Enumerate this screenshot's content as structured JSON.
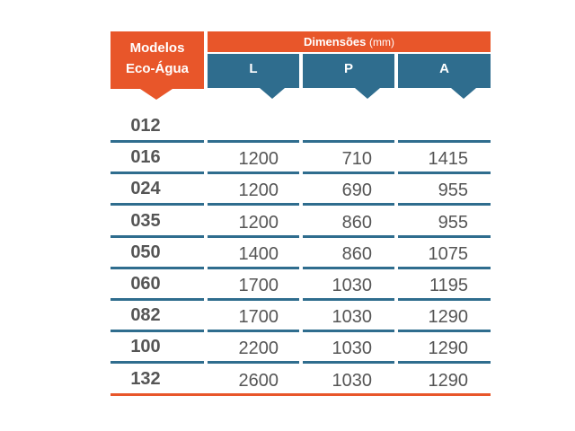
{
  "header": {
    "models_line1": "Modelos",
    "models_line2": "Eco-Água",
    "dimensions_label": "Dimensões",
    "dimensions_unit": "(mm)",
    "col_L": "L",
    "col_P": "P",
    "col_A": "A"
  },
  "colors": {
    "orange": "#e8562a",
    "blue": "#2f6d8e",
    "text": "#555555"
  },
  "rows": [
    {
      "model": "012",
      "L": "",
      "P": "",
      "A": ""
    },
    {
      "model": "016",
      "L": "1200",
      "P": "710",
      "A": "1415"
    },
    {
      "model": "024",
      "L": "1200",
      "P": "690",
      "A": "955"
    },
    {
      "model": "035",
      "L": "1200",
      "P": "860",
      "A": "955"
    },
    {
      "model": "050",
      "L": "1400",
      "P": "860",
      "A": "1075"
    },
    {
      "model": "060",
      "L": "1700",
      "P": "1030",
      "A": "1195"
    },
    {
      "model": "082",
      "L": "1700",
      "P": "1030",
      "A": "1290"
    },
    {
      "model": "100",
      "L": "2200",
      "P": "1030",
      "A": "1290"
    },
    {
      "model": "132",
      "L": "2600",
      "P": "1030",
      "A": "1290"
    }
  ]
}
